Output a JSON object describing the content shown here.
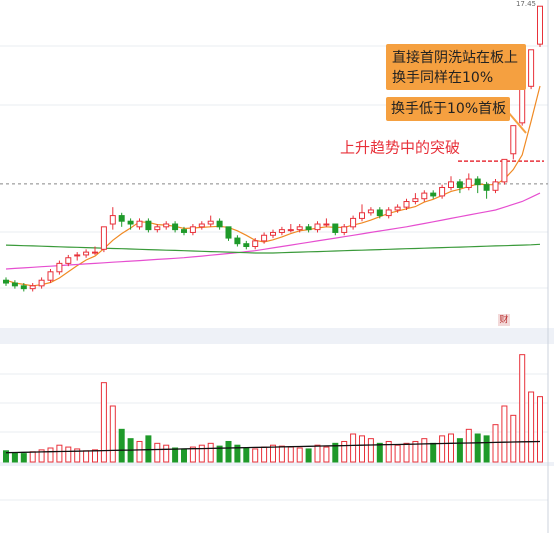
{
  "chart_data": {
    "type": "candlestick",
    "open": [
      7.7,
      7.6,
      7.5,
      7.4,
      7.5,
      7.7,
      8.0,
      8.3,
      8.6,
      8.6,
      8.7,
      8.8,
      9.7,
      10.0,
      9.8,
      9.6,
      9.8,
      9.5,
      9.6,
      9.7,
      9.5,
      9.4,
      9.6,
      9.7,
      9.8,
      9.6,
      9.2,
      9.0,
      8.9,
      9.1,
      9.3,
      9.4,
      9.5,
      9.5,
      9.6,
      9.5,
      9.7,
      9.7,
      9.4,
      9.6,
      9.9,
      10.1,
      10.2,
      10.0,
      10.2,
      10.3,
      10.5,
      10.6,
      10.8,
      10.7,
      11.0,
      11.2,
      11.0,
      11.3,
      11.1,
      10.9,
      11.2,
      12.2,
      13.3,
      14.6,
      16.1
    ],
    "high": [
      7.8,
      7.7,
      7.6,
      7.6,
      7.8,
      8.1,
      8.4,
      8.6,
      8.7,
      8.8,
      8.9,
      9.6,
      10.3,
      10.1,
      9.9,
      9.9,
      9.9,
      9.7,
      9.8,
      9.8,
      9.6,
      9.7,
      9.8,
      10.0,
      9.9,
      9.6,
      9.3,
      9.1,
      9.2,
      9.4,
      9.5,
      9.6,
      9.7,
      9.7,
      9.7,
      9.8,
      9.9,
      9.7,
      9.7,
      10.0,
      10.4,
      10.3,
      10.3,
      10.3,
      10.4,
      10.6,
      10.8,
      10.9,
      10.9,
      11.1,
      11.4,
      11.3,
      11.5,
      11.4,
      11.2,
      11.3,
      12.0,
      13.2,
      14.5,
      15.9,
      17.45
    ],
    "low": [
      7.5,
      7.4,
      7.3,
      7.3,
      7.4,
      7.6,
      7.9,
      8.2,
      8.4,
      8.5,
      8.6,
      8.7,
      9.5,
      9.6,
      9.5,
      9.5,
      9.4,
      9.4,
      9.5,
      9.4,
      9.3,
      9.3,
      9.5,
      9.6,
      9.5,
      9.1,
      8.9,
      8.8,
      8.8,
      9.0,
      9.2,
      9.3,
      9.4,
      9.4,
      9.4,
      9.4,
      9.6,
      9.3,
      9.3,
      9.5,
      9.8,
      10.0,
      9.9,
      9.9,
      10.1,
      10.2,
      10.4,
      10.5,
      10.6,
      10.6,
      10.9,
      10.8,
      10.9,
      10.8,
      10.6,
      10.8,
      11.1,
      12.0,
      13.2,
      14.5,
      16.0
    ],
    "close": [
      7.6,
      7.5,
      7.4,
      7.5,
      7.7,
      8.0,
      8.3,
      8.5,
      8.6,
      8.7,
      8.7,
      9.6,
      10.0,
      9.8,
      9.7,
      9.8,
      9.5,
      9.6,
      9.7,
      9.5,
      9.4,
      9.6,
      9.7,
      9.8,
      9.6,
      9.2,
      9.0,
      8.9,
      9.1,
      9.3,
      9.4,
      9.5,
      9.5,
      9.6,
      9.5,
      9.7,
      9.7,
      9.4,
      9.6,
      9.9,
      10.1,
      10.2,
      10.0,
      10.2,
      10.3,
      10.5,
      10.6,
      10.8,
      10.7,
      11.0,
      11.2,
      11.0,
      11.3,
      11.1,
      10.9,
      11.2,
      12.0,
      13.2,
      14.5,
      15.9,
      17.45
    ],
    "ylim": [
      6,
      17.6
    ],
    "up_color": "#e8313a",
    "down_color": "#1f9a2a",
    "lines": [
      {
        "color": "#f08a24",
        "values": [
          7.7,
          7.6,
          7.55,
          7.5,
          7.54,
          7.62,
          7.78,
          8.0,
          8.22,
          8.42,
          8.56,
          8.82,
          9.12,
          9.36,
          9.56,
          9.78,
          9.76,
          9.68,
          9.66,
          9.62,
          9.54,
          9.56,
          9.58,
          9.6,
          9.62,
          9.58,
          9.46,
          9.3,
          9.12,
          9.06,
          9.14,
          9.24,
          9.36,
          9.46,
          9.5,
          9.56,
          9.6,
          9.58,
          9.58,
          9.66,
          9.74,
          9.84,
          9.96,
          10.08,
          10.16,
          10.24,
          10.32,
          10.48,
          10.58,
          10.72,
          10.86,
          10.94,
          11.04,
          11.12,
          11.1,
          11.1,
          11.3,
          11.64,
          12.16,
          13.36,
          14.61
        ]
      },
      {
        "color": "#e64fd0",
        "values": [
          8.1,
          8.12,
          8.14,
          8.16,
          8.18,
          8.2,
          8.22,
          8.24,
          8.26,
          8.28,
          8.3,
          8.32,
          8.34,
          8.36,
          8.38,
          8.4,
          8.42,
          8.44,
          8.46,
          8.48,
          8.5,
          8.53,
          8.56,
          8.59,
          8.62,
          8.65,
          8.68,
          8.72,
          8.75,
          8.8,
          8.85,
          8.9,
          8.95,
          9.0,
          9.05,
          9.1,
          9.15,
          9.2,
          9.25,
          9.3,
          9.35,
          9.4,
          9.45,
          9.5,
          9.55,
          9.6,
          9.66,
          9.72,
          9.78,
          9.84,
          9.9,
          9.96,
          10.02,
          10.08,
          10.14,
          10.2,
          10.3,
          10.4,
          10.5,
          10.65,
          10.8
        ]
      },
      {
        "color": "#3a9a3a",
        "values": [
          8.95,
          8.94,
          8.93,
          8.92,
          8.91,
          8.9,
          8.89,
          8.88,
          8.87,
          8.86,
          8.85,
          8.84,
          8.83,
          8.82,
          8.81,
          8.8,
          8.79,
          8.78,
          8.77,
          8.76,
          8.75,
          8.74,
          8.73,
          8.72,
          8.71,
          8.7,
          8.69,
          8.68,
          8.67,
          8.67,
          8.67,
          8.68,
          8.69,
          8.7,
          8.71,
          8.72,
          8.73,
          8.74,
          8.75,
          8.76,
          8.77,
          8.78,
          8.79,
          8.8,
          8.81,
          8.82,
          8.83,
          8.84,
          8.85,
          8.86,
          8.87,
          8.88,
          8.89,
          8.9,
          8.91,
          8.92,
          8.93,
          8.94,
          8.95,
          8.96,
          8.98
        ]
      }
    ],
    "levels": [
      {
        "value": 11.13,
        "color": "#888888"
      },
      {
        "value": 11.94,
        "color": "#e8313a"
      }
    ],
    "volume": {
      "ylim": [
        0,
        120
      ],
      "values": [
        12,
        10,
        9,
        11,
        13,
        15,
        18,
        16,
        14,
        12,
        13,
        85,
        60,
        35,
        25,
        22,
        28,
        20,
        18,
        15,
        14,
        16,
        18,
        20,
        17,
        22,
        18,
        15,
        14,
        16,
        18,
        17,
        16,
        15,
        14,
        18,
        16,
        20,
        22,
        30,
        28,
        25,
        20,
        22,
        18,
        20,
        22,
        25,
        20,
        28,
        30,
        25,
        35,
        30,
        28,
        40,
        60,
        50,
        115,
        75,
        70
      ],
      "line": {
        "color": "#111111",
        "values": [
          10.0,
          10.2,
          10.4,
          10.6,
          10.8,
          11.0,
          11.2,
          11.4,
          11.6,
          11.8,
          12.0,
          12.2,
          12.4,
          12.6,
          12.8,
          13.0,
          13.2,
          13.4,
          13.6,
          13.8,
          14.0,
          14.2,
          14.4,
          14.6,
          14.8,
          15.0,
          15.2,
          15.4,
          15.6,
          15.8,
          16.0,
          16.2,
          16.4,
          16.6,
          16.8,
          17.0,
          17.2,
          17.4,
          17.6,
          17.8,
          18.0,
          18.2,
          18.4,
          18.6,
          18.8,
          19.0,
          19.2,
          19.4,
          19.6,
          19.8,
          20.0,
          20.2,
          20.4,
          20.6,
          20.8,
          21.0,
          21.2,
          21.4,
          21.6,
          21.8,
          22.0
        ]
      }
    },
    "annotations": [
      "直接首阴洗站在板上",
      "换手同样在10%",
      "换手低于10%首板"
    ],
    "callout": "上升趋势中的突破",
    "badge": "财"
  }
}
